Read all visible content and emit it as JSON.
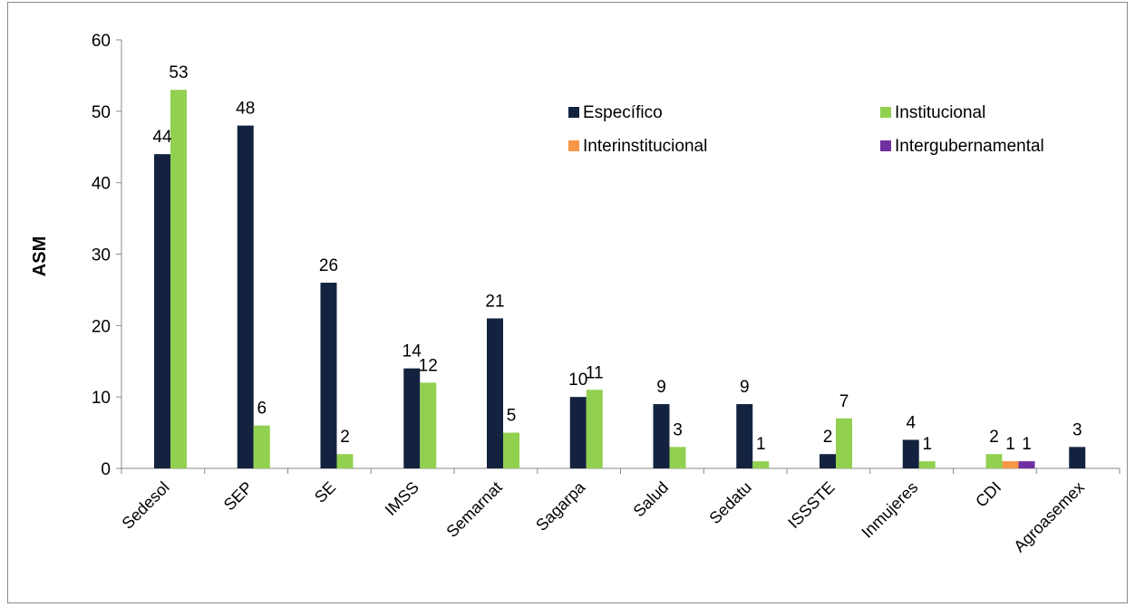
{
  "chart_data": {
    "type": "bar",
    "title": "",
    "xlabel": "",
    "ylabel": "ASM",
    "ylim": [
      0,
      60
    ],
    "yticks": [
      0,
      10,
      20,
      30,
      40,
      50,
      60
    ],
    "grid": false,
    "legend_position": "top-right",
    "categories": [
      "Sedesol",
      "SEP",
      "SE",
      "IMSS",
      "Semarnat",
      "Sagarpa",
      "Salud",
      "Sedatu",
      "ISSSTE",
      "Inmujeres",
      "CDI",
      "Agroasemex"
    ],
    "series": [
      {
        "name": "Específico",
        "color": "#13233f",
        "values": [
          44,
          48,
          26,
          14,
          21,
          10,
          9,
          9,
          2,
          4,
          0,
          3
        ]
      },
      {
        "name": "Institucional",
        "color": "#92d050",
        "values": [
          53,
          6,
          2,
          12,
          5,
          11,
          3,
          1,
          7,
          1,
          2,
          0
        ]
      },
      {
        "name": "Interinstitucional",
        "color": "#f79646",
        "values": [
          0,
          0,
          0,
          0,
          0,
          0,
          0,
          0,
          0,
          0,
          1,
          0
        ]
      },
      {
        "name": "Intergubernamental",
        "color": "#7030a0",
        "values": [
          0,
          0,
          0,
          0,
          0,
          0,
          0,
          0,
          0,
          0,
          1,
          0
        ]
      }
    ]
  }
}
